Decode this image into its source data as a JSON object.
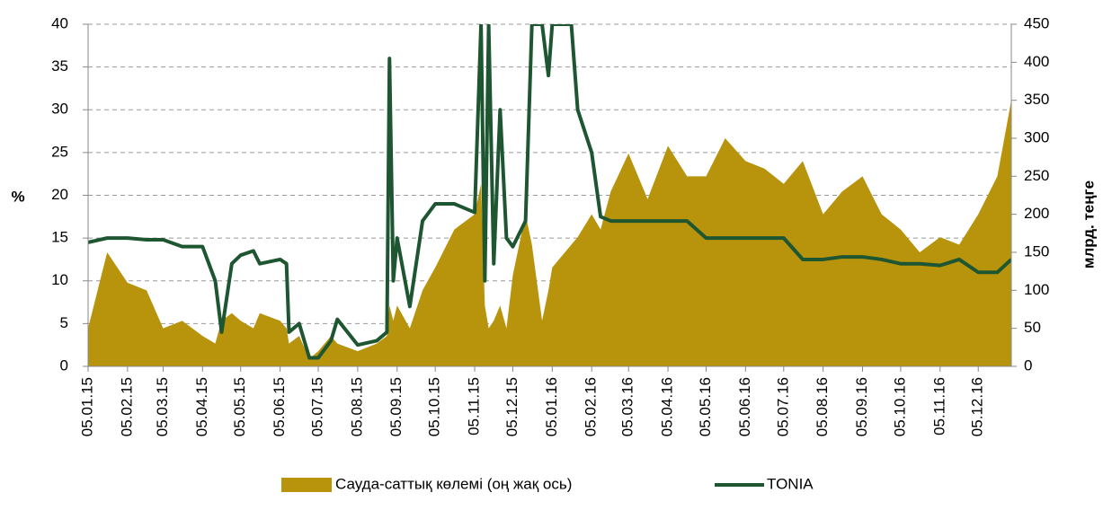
{
  "chart_data": {
    "type": "combo",
    "y_label": "%",
    "y2_label": "млрд. теңге",
    "x": [
      "05.01.15",
      "20.01.15",
      "05.02.15",
      "20.02.15",
      "05.03.15",
      "20.03.15",
      "05.04.15",
      "15.04.15",
      "20.04.15",
      "28.04.15",
      "05.05.15",
      "15.05.15",
      "20.05.15",
      "05.06.15",
      "10.06.15",
      "12.06.15",
      "20.06.15",
      "28.06.15",
      "05.07.15",
      "15.07.15",
      "20.07.15",
      "05.08.15",
      "20.08.15",
      "28.08.15",
      "30.08.15",
      "02.09.15",
      "05.09.15",
      "15.09.15",
      "25.09.15",
      "05.10.15",
      "20.10.15",
      "05.11.15",
      "10.11.15",
      "13.11.15",
      "16.11.15",
      "20.11.15",
      "25.11.15",
      "30.11.15",
      "05.12.15",
      "15.12.15",
      "20.12.15",
      "28.12.15",
      "02.01.16",
      "05.01.16",
      "20.01.16",
      "25.01.16",
      "05.02.16",
      "12.02.16",
      "20.02.16",
      "05.03.16",
      "20.03.16",
      "05.04.16",
      "20.04.16",
      "05.05.16",
      "20.05.16",
      "05.06.16",
      "20.06.16",
      "05.07.16",
      "20.07.16",
      "05.08.16",
      "20.08.16",
      "05.09.16",
      "20.09.16",
      "05.10.16",
      "20.10.16",
      "05.11.16",
      "20.11.16",
      "05.12.16",
      "20.12.16",
      "31.12.16"
    ],
    "series": [
      {
        "name": "Сауда-саттық көлемі (оң жақ ось)",
        "type": "area",
        "axis": "y2",
        "color": "#b8930c",
        "values": [
          50,
          150,
          110,
          100,
          50,
          60,
          40,
          30,
          60,
          70,
          60,
          50,
          70,
          60,
          50,
          30,
          40,
          10,
          20,
          40,
          30,
          20,
          30,
          40,
          80,
          60,
          80,
          50,
          100,
          130,
          180,
          200,
          240,
          80,
          50,
          60,
          80,
          50,
          120,
          200,
          160,
          60,
          100,
          130,
          160,
          170,
          200,
          180,
          230,
          280,
          220,
          290,
          250,
          250,
          300,
          270,
          260,
          240,
          270,
          200,
          230,
          250,
          200,
          180,
          150,
          170,
          160,
          200,
          250,
          350
        ]
      },
      {
        "name": "TONIA",
        "type": "line",
        "color": "#1e5631",
        "values": [
          14.5,
          15,
          15,
          14.8,
          14.8,
          14,
          14,
          10,
          4,
          12,
          13,
          13.5,
          12,
          12.5,
          12,
          4,
          5,
          1,
          1,
          3,
          5.5,
          2.5,
          3,
          4,
          36,
          10,
          15,
          7,
          17,
          19,
          19,
          18,
          40,
          10,
          40,
          12,
          30,
          15,
          14,
          17,
          40,
          40,
          34,
          40,
          40,
          30,
          25,
          17.5,
          17,
          17,
          17,
          17,
          17,
          15,
          15,
          15,
          15,
          15,
          12.5,
          12.5,
          12.8,
          12.8,
          12.5,
          12,
          12,
          11.8,
          12.5,
          11,
          11,
          12.5
        ]
      }
    ],
    "xlim": [
      "05.01.15",
      "31.12.16"
    ],
    "xticks": [
      "05.01.15",
      "05.02.15",
      "05.03.15",
      "05.04.15",
      "05.05.15",
      "05.06.15",
      "05.07.15",
      "05.08.15",
      "05.09.15",
      "05.10.15",
      "05.11.15",
      "05.12.15",
      "05.01.16",
      "05.02.16",
      "05.03.16",
      "05.04.16",
      "05.05.16",
      "05.06.16",
      "05.07.16",
      "05.08.16",
      "05.09.16",
      "05.10.16",
      "05.11.16",
      "05.12.16"
    ],
    "ylim": [
      0,
      40
    ],
    "yticks": [
      0,
      5,
      10,
      15,
      20,
      25,
      30,
      35,
      40
    ],
    "y2lim": [
      0,
      450
    ],
    "y2ticks": [
      0,
      50,
      100,
      150,
      200,
      250,
      300,
      350,
      400,
      450
    ],
    "grid": true
  }
}
